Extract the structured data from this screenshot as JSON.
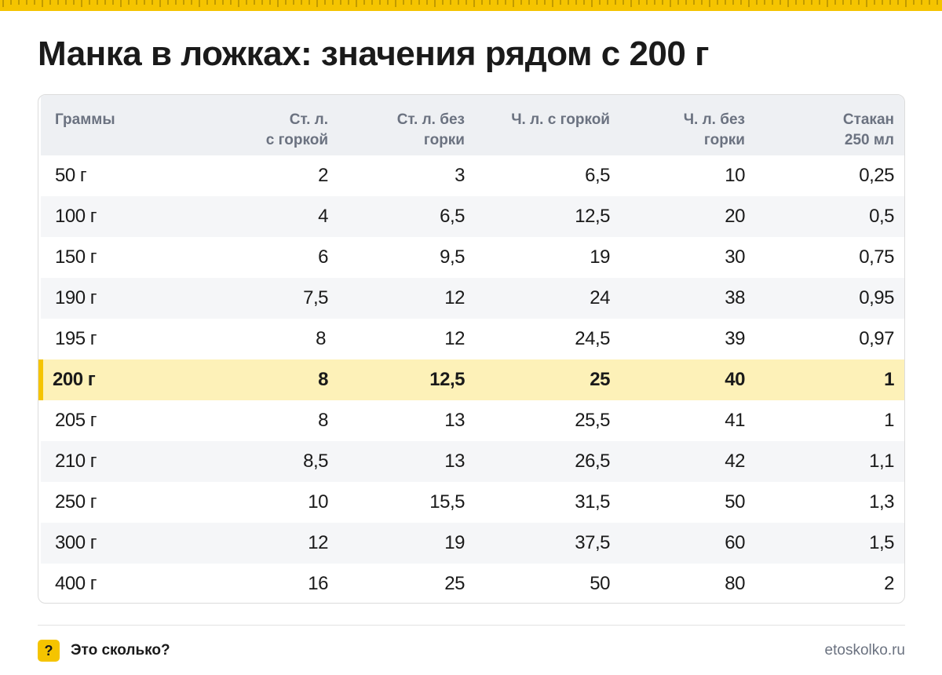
{
  "title": "Манка в ложках: значения рядом с 200 г",
  "table": {
    "headers": [
      [
        "Граммы"
      ],
      [
        "Ст. л.",
        "с горкой"
      ],
      [
        "Ст. л. без",
        "горки"
      ],
      [
        "Ч. л. с горкой"
      ],
      [
        "Ч. л. без",
        "горки"
      ],
      [
        "Стакан",
        "250 мл"
      ]
    ],
    "rows": [
      [
        "50 г",
        "2",
        "3",
        "6,5",
        "10",
        "0,25"
      ],
      [
        "100 г",
        "4",
        "6,5",
        "12,5",
        "20",
        "0,5"
      ],
      [
        "150 г",
        "6",
        "9,5",
        "19",
        "30",
        "0,75"
      ],
      [
        "190 г",
        "7,5",
        "12",
        "24",
        "38",
        "0,95"
      ],
      [
        "195 г",
        "8",
        "12",
        "24,5",
        "39",
        "0,97"
      ],
      [
        "200 г",
        "8",
        "12,5",
        "25",
        "40",
        "1"
      ],
      [
        "205 г",
        "8",
        "13",
        "25,5",
        "41",
        "1"
      ],
      [
        "210 г",
        "8,5",
        "13",
        "26,5",
        "42",
        "1,1"
      ],
      [
        "250 г",
        "10",
        "15,5",
        "31,5",
        "50",
        "1,3"
      ],
      [
        "300 г",
        "12",
        "19",
        "37,5",
        "60",
        "1,5"
      ],
      [
        "400 г",
        "16",
        "25",
        "50",
        "80",
        "2"
      ]
    ],
    "highlighted_row": 5
  },
  "footer": {
    "badge": "?",
    "brand": "Это сколько?",
    "site": "etoskolko.ru"
  },
  "colors": {
    "accent": "#f5c400",
    "highlight_row": "#fdf1b8",
    "header_bg": "#eef0f3",
    "alt_row_bg": "#f5f6f8",
    "muted_text": "#6b7280"
  }
}
